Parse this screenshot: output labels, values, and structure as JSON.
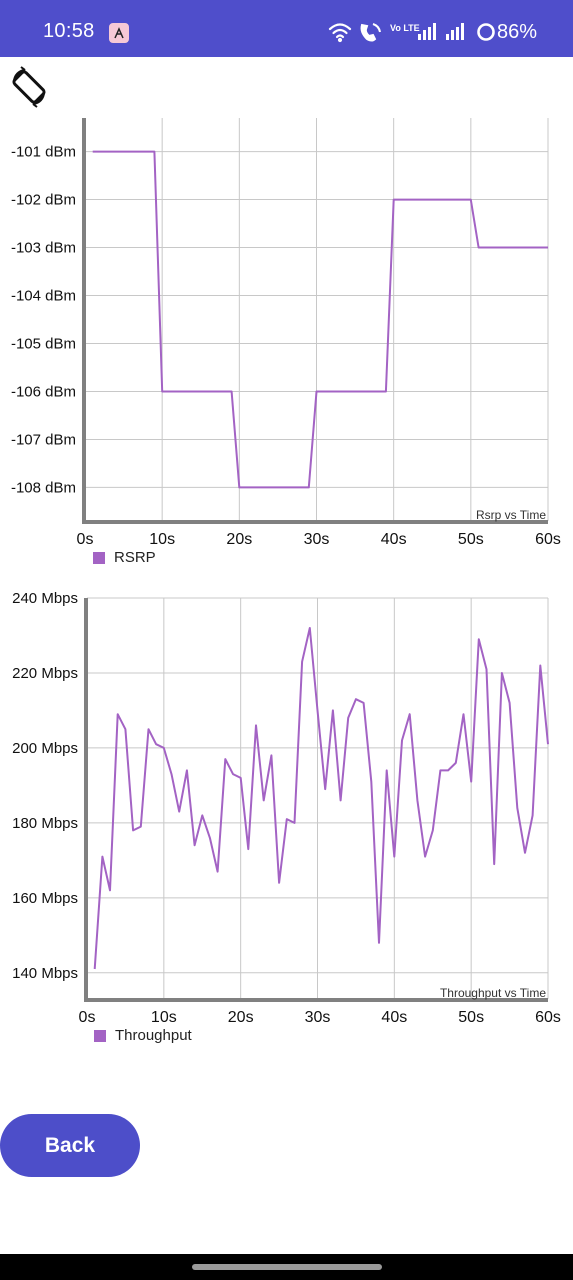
{
  "status_bar": {
    "time": "10:58",
    "network_label": "Vo LTE",
    "battery": "86%",
    "icons": [
      "app-notification-icon",
      "wifi-icon",
      "wifi-calling-icon",
      "volte-icon",
      "signal-icon",
      "signal-icon",
      "battery-ring-icon"
    ],
    "bg_color": "#4f4ecb"
  },
  "toolbar": {
    "rotate_icon": "screen-rotate-icon"
  },
  "colors": {
    "series": "#a363c4",
    "legend": "#a363c4",
    "grid": "#c8c8c8",
    "axis": "#808080",
    "button": "#4d4ec9"
  },
  "chart_data": [
    {
      "type": "line",
      "title": "Rsrp vs Time",
      "xlabel": "",
      "ylabel": "",
      "x_tick_labels": [
        "0s",
        "10s",
        "20s",
        "30s",
        "40s",
        "50s",
        "60s"
      ],
      "y_tick_labels": [
        "-101 dBm",
        "-102 dBm",
        "-103 dBm",
        "-104 dBm",
        "-105 dBm",
        "-106 dBm",
        "-107 dBm",
        "-108 dBm"
      ],
      "y_ticks": [
        -101,
        -102,
        -103,
        -104,
        -105,
        -106,
        -107,
        -108
      ],
      "xlim": [
        0,
        60
      ],
      "ylim": [
        -108.7,
        -100.3
      ],
      "grid": true,
      "legend_position": "bottom-left",
      "series": [
        {
          "name": "RSRP",
          "x": [
            1,
            9,
            10,
            19,
            20,
            29,
            30,
            39,
            40,
            50,
            51,
            60
          ],
          "y": [
            -101,
            -101,
            -106,
            -106,
            -108,
            -108,
            -106,
            -106,
            -102,
            -102,
            -103,
            -103
          ]
        }
      ]
    },
    {
      "type": "line",
      "title": "Throughput vs Time",
      "xlabel": "",
      "ylabel": "",
      "x_tick_labels": [
        "0s",
        "10s",
        "20s",
        "30s",
        "40s",
        "50s",
        "60s"
      ],
      "y_tick_labels": [
        "240 Mbps",
        "220 Mbps",
        "200 Mbps",
        "180 Mbps",
        "160 Mbps",
        "140 Mbps"
      ],
      "y_ticks": [
        240,
        220,
        200,
        180,
        160,
        140
      ],
      "xlim": [
        0,
        60
      ],
      "ylim": [
        133,
        240
      ],
      "grid": true,
      "legend_position": "bottom-left",
      "series": [
        {
          "name": "Throughput",
          "x": [
            1,
            2,
            3,
            4,
            5,
            6,
            7,
            8,
            9,
            10,
            11,
            12,
            13,
            14,
            15,
            16,
            17,
            18,
            19,
            20,
            21,
            22,
            23,
            24,
            25,
            26,
            27,
            28,
            29,
            30,
            31,
            32,
            33,
            34,
            35,
            36,
            37,
            38,
            39,
            40,
            41,
            42,
            43,
            44,
            45,
            46,
            47,
            48,
            49,
            50,
            51,
            52,
            53,
            54,
            55,
            56,
            57,
            58,
            59,
            60
          ],
          "y": [
            141,
            171,
            162,
            209,
            205,
            178,
            179,
            205,
            201,
            200,
            193,
            183,
            194,
            174,
            182,
            176,
            167,
            197,
            193,
            192,
            173,
            206,
            186,
            198,
            164,
            181,
            180,
            223,
            232,
            210,
            189,
            210,
            186,
            208,
            213,
            212,
            191,
            148,
            194,
            171,
            202,
            209,
            186,
            171,
            178,
            194,
            194,
            196,
            209,
            191,
            229,
            221,
            169,
            220,
            212,
            184,
            172,
            182,
            222,
            201
          ]
        }
      ]
    }
  ],
  "back_button": {
    "label": "Back"
  }
}
